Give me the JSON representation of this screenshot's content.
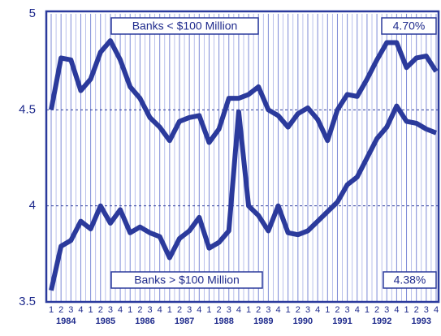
{
  "chart_data": {
    "type": "line",
    "categories": [
      "1",
      "2",
      "3",
      "4",
      "1",
      "2",
      "3",
      "4",
      "1",
      "2",
      "3",
      "4",
      "1",
      "2",
      "3",
      "4",
      "1",
      "2",
      "3",
      "4",
      "1",
      "2",
      "3",
      "4",
      "1",
      "2",
      "3",
      "4",
      "1",
      "2",
      "3",
      "4",
      "1",
      "2",
      "3",
      "4",
      "1",
      "2",
      "3",
      "4"
    ],
    "years": [
      "1984",
      "1985",
      "1986",
      "1987",
      "1988",
      "1989",
      "1990",
      "1991",
      "1992",
      "1993"
    ],
    "series": [
      {
        "name": "Banks < $100 Million",
        "color": "#2b3a9c",
        "values": [
          4.5,
          4.77,
          4.76,
          4.6,
          4.66,
          4.8,
          4.86,
          4.76,
          4.62,
          4.56,
          4.46,
          4.41,
          4.34,
          4.44,
          4.46,
          4.47,
          4.33,
          4.4,
          4.56,
          4.56,
          4.58,
          4.62,
          4.5,
          4.47,
          4.41,
          4.48,
          4.51,
          4.45,
          4.34,
          4.5,
          4.58,
          4.57,
          4.66,
          4.76,
          4.85,
          4.85,
          4.72,
          4.77,
          4.78,
          4.7
        ]
      },
      {
        "name": "Banks > $100 Million",
        "color": "#2b3a9c",
        "values": [
          3.56,
          3.79,
          3.82,
          3.92,
          3.88,
          4.0,
          3.91,
          3.98,
          3.86,
          3.89,
          3.86,
          3.84,
          3.73,
          3.83,
          3.87,
          3.94,
          3.78,
          3.81,
          3.87,
          4.49,
          4.0,
          3.95,
          3.87,
          4.0,
          3.86,
          3.85,
          3.87,
          3.92,
          3.97,
          4.02,
          4.11,
          4.15,
          4.25,
          4.35,
          4.41,
          4.52,
          4.44,
          4.43,
          4.4,
          4.38
        ]
      }
    ],
    "annotations": [
      "4.70%",
      "4.38%"
    ],
    "ylim": [
      3.5,
      5
    ],
    "yticks": [
      3.5,
      4,
      4.5,
      5
    ],
    "grid": true
  }
}
